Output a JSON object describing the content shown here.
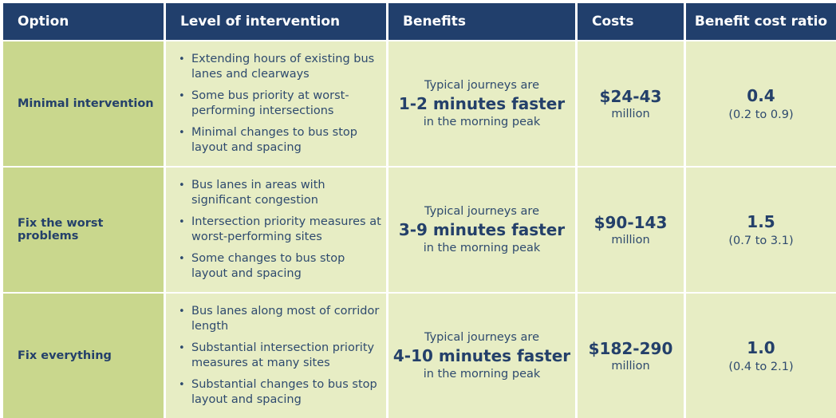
{
  "headers": {
    "option": "Option",
    "level": "Level of intervention",
    "benefits": "Benefits",
    "costs": "Costs",
    "bcr": "Benefit cost ratio"
  },
  "rows": [
    {
      "option": "Minimal intervention",
      "level": [
        "Extending hours of existing bus lanes and clearways",
        "Some bus priority at worst-performing intersections",
        "Minimal changes to bus stop layout and spacing"
      ],
      "benefit_pre": "Typical journeys are",
      "benefit_main": "1-2 minutes faster",
      "benefit_post": "in the morning peak",
      "cost": "$24-43",
      "cost_unit": "million",
      "ratio": "0.4",
      "ratio_range": "(0.2 to 0.9)"
    },
    {
      "option": "Fix the worst problems",
      "level": [
        "Bus lanes in areas with significant congestion",
        "Intersection priority measures at worst-performing sites",
        "Some changes to bus stop layout and spacing"
      ],
      "benefit_pre": "Typical journeys are",
      "benefit_main": "3-9 minutes faster",
      "benefit_post": "in the morning peak",
      "cost": "$90-143",
      "cost_unit": "million",
      "ratio": "1.5",
      "ratio_range": "(0.7 to 3.1)"
    },
    {
      "option": "Fix everything",
      "level": [
        "Bus lanes along most of corridor length",
        "Substantial intersection priority measures at many sites",
        "Substantial changes to bus stop layout and spacing"
      ],
      "benefit_pre": "Typical journeys are",
      "benefit_main": "4-10 minutes faster",
      "benefit_post": "in the morning peak",
      "cost": "$182-290",
      "cost_unit": "million",
      "ratio": "1.0",
      "ratio_range": "(0.4 to 2.1)"
    }
  ],
  "colors": {
    "header_bg": "#213f6c",
    "option_bg": "#c9d78d",
    "cell_bg": "#e7edc4",
    "text": "#2e4a6e"
  },
  "icons": {
    "bullet": "bullet-dot"
  }
}
